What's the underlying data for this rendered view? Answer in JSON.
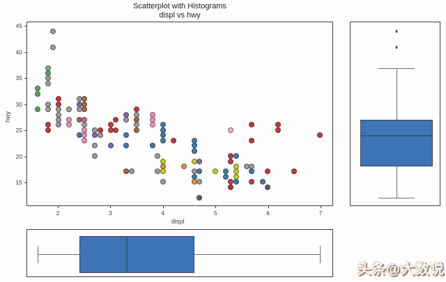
{
  "title": {
    "line1": "Scatterplot with Histograms",
    "line2": "displ vs hwy"
  },
  "axes": {
    "xlabel": "displ",
    "ylabel": "hwy",
    "x_ticks": [
      "2",
      "3",
      "4",
      "5",
      "6",
      "7"
    ],
    "y_ticks": [
      "15",
      "20",
      "25",
      "30",
      "35",
      "40",
      "45"
    ],
    "x_range": [
      1.403,
      7.239
    ],
    "y_range": [
      10.47,
      45.8
    ]
  },
  "palette": {
    "gy": "#9b9b9b",
    "gn": "#57a65f",
    "rd": "#c23b43",
    "pu": "#8267ab",
    "bn": "#9e6b49",
    "pk": "#e891bd",
    "mg": "#d263a5",
    "lp": "#efaecd",
    "bl": "#4878ac",
    "ol": "#bfd02f",
    "or": "#e0913d",
    "dg": "#5f5d70",
    "dr": "#b03038"
  },
  "box_style": {
    "fill": "#3c74b5",
    "edge": "#3d4654",
    "median": "#3a5878",
    "whisker": "#6e6e6e"
  },
  "chart_data": [
    {
      "type": "scatter",
      "title": "Scatterplot with Histograms",
      "subtitle": "displ vs hwy",
      "xlabel": "displ",
      "ylabel": "hwy",
      "xlim": [
        1.403,
        7.239
      ],
      "ylim": [
        10.47,
        45.8
      ],
      "grid": false,
      "points": [
        [
          1.9,
          44,
          "gy"
        ],
        [
          1.9,
          41,
          "gy"
        ],
        [
          1.8,
          37,
          "gy"
        ],
        [
          1.8,
          36,
          "gn"
        ],
        [
          1.8,
          35,
          "gy"
        ],
        [
          1.8,
          34,
          "gy"
        ],
        [
          1.6,
          33,
          "gn"
        ],
        [
          1.6,
          32,
          "gn"
        ],
        [
          1.6,
          29,
          "gn"
        ],
        [
          1.8,
          30,
          "gy"
        ],
        [
          1.8,
          29,
          "gy"
        ],
        [
          1.8,
          26,
          "rd"
        ],
        [
          1.8,
          25,
          "rd"
        ],
        [
          2.0,
          31,
          "rd"
        ],
        [
          2.0,
          30,
          "rd"
        ],
        [
          2.0,
          29,
          "gy"
        ],
        [
          2.0,
          28,
          "gy"
        ],
        [
          2.0,
          27,
          "gy"
        ],
        [
          2.0,
          26,
          "gy"
        ],
        [
          2.2,
          29,
          "gy"
        ],
        [
          2.2,
          27,
          "pk"
        ],
        [
          2.2,
          26,
          "pk"
        ],
        [
          2.4,
          31,
          "gy"
        ],
        [
          2.5,
          31,
          "bn"
        ],
        [
          2.4,
          30,
          "pu"
        ],
        [
          2.5,
          30,
          "bn"
        ],
        [
          2.4,
          29,
          "gy"
        ],
        [
          2.5,
          29,
          "bn"
        ],
        [
          2.4,
          27,
          "bn"
        ],
        [
          2.5,
          27,
          "mg"
        ],
        [
          2.5,
          26,
          "gy"
        ],
        [
          2.5,
          25,
          "pk"
        ],
        [
          2.4,
          24,
          "bl"
        ],
        [
          2.5,
          24,
          "pk"
        ],
        [
          2.5,
          23,
          "pk"
        ],
        [
          2.7,
          25,
          "gy"
        ],
        [
          2.7,
          24,
          "pu"
        ],
        [
          2.8,
          25,
          "rd"
        ],
        [
          2.8,
          24,
          "gy"
        ],
        [
          2.7,
          22,
          "gy"
        ],
        [
          2.7,
          20,
          "gy"
        ],
        [
          3.0,
          26,
          "rd"
        ],
        [
          3.0,
          25,
          "rd"
        ],
        [
          3.0,
          22,
          "pu"
        ],
        [
          3.1,
          27,
          "rd"
        ],
        [
          3.1,
          25,
          "rd"
        ],
        [
          3.3,
          28,
          "pu"
        ],
        [
          3.3,
          27,
          "gy"
        ],
        [
          3.3,
          24,
          "bl"
        ],
        [
          3.3,
          22,
          "bl"
        ],
        [
          3.3,
          17,
          "bn"
        ],
        [
          3.4,
          17,
          "gy"
        ],
        [
          3.5,
          29,
          "rd"
        ],
        [
          3.5,
          28,
          "gy"
        ],
        [
          3.5,
          27,
          "bn"
        ],
        [
          3.5,
          26,
          "gy"
        ],
        [
          3.5,
          25,
          "bn"
        ],
        [
          3.8,
          28,
          "pk"
        ],
        [
          3.8,
          27,
          "pk"
        ],
        [
          3.8,
          26,
          "pk"
        ],
        [
          3.8,
          22,
          "bl"
        ],
        [
          3.9,
          20,
          "gy"
        ],
        [
          3.9,
          17,
          "gy"
        ],
        [
          4.0,
          26,
          "bl"
        ],
        [
          4.0,
          25,
          "bl"
        ],
        [
          4.0,
          24,
          "bl"
        ],
        [
          4.0,
          23,
          "bl"
        ],
        [
          4.0,
          19,
          "ol"
        ],
        [
          4.0,
          18,
          "or"
        ],
        [
          4.0,
          17,
          "ol"
        ],
        [
          4.0,
          15,
          "gy"
        ],
        [
          4.2,
          23,
          "rd"
        ],
        [
          4.4,
          18,
          "or"
        ],
        [
          4.6,
          23,
          "bl"
        ],
        [
          4.6,
          22,
          "bl"
        ],
        [
          4.6,
          21,
          "bl"
        ],
        [
          4.6,
          19,
          "ol"
        ],
        [
          4.6,
          17,
          "gy"
        ],
        [
          4.6,
          16,
          "bl"
        ],
        [
          4.6,
          15,
          "or"
        ],
        [
          4.7,
          19,
          "pu"
        ],
        [
          4.7,
          17,
          "bl"
        ],
        [
          4.7,
          15,
          "gy"
        ],
        [
          4.7,
          12,
          "dg"
        ],
        [
          5.0,
          17,
          "ol"
        ],
        [
          5.2,
          17,
          "bl"
        ],
        [
          5.2,
          16,
          "bl"
        ],
        [
          5.3,
          25,
          "lp"
        ],
        [
          5.3,
          20,
          "rd"
        ],
        [
          5.3,
          19,
          "rd"
        ],
        [
          5.3,
          15,
          "rd"
        ],
        [
          5.3,
          14,
          "dr"
        ],
        [
          5.4,
          20,
          "bl"
        ],
        [
          5.4,
          18,
          "ol"
        ],
        [
          5.4,
          17,
          "ol"
        ],
        [
          5.4,
          16,
          "ol"
        ],
        [
          5.4,
          15,
          "bl"
        ],
        [
          5.6,
          18,
          "gy"
        ],
        [
          5.7,
          18,
          "gy"
        ],
        [
          5.7,
          17,
          "bl"
        ],
        [
          5.7,
          26,
          "rd"
        ],
        [
          5.7,
          23,
          "rd"
        ],
        [
          5.7,
          15,
          "rd"
        ],
        [
          5.9,
          15,
          "bl"
        ],
        [
          6.0,
          17,
          "rd"
        ],
        [
          6.0,
          14,
          "dg"
        ],
        [
          6.2,
          26,
          "rd"
        ],
        [
          6.2,
          25,
          "rd"
        ],
        [
          6.5,
          17,
          "rd"
        ],
        [
          7.0,
          24,
          "rd"
        ]
      ]
    },
    {
      "type": "boxplot",
      "variable": "hwy",
      "orientation": "vertical",
      "whisker_low": 12,
      "q1": 18,
      "median": 24,
      "q3": 27,
      "whisker_high": 37,
      "outliers": [
        41,
        44
      ]
    },
    {
      "type": "boxplot",
      "variable": "displ",
      "orientation": "horizontal",
      "whisker_low": 1.6,
      "q1": 2.4,
      "median": 3.3,
      "q3": 4.6,
      "whisker_high": 7.0,
      "outliers": []
    }
  ],
  "watermark": {
    "text": "头条@大数说"
  }
}
